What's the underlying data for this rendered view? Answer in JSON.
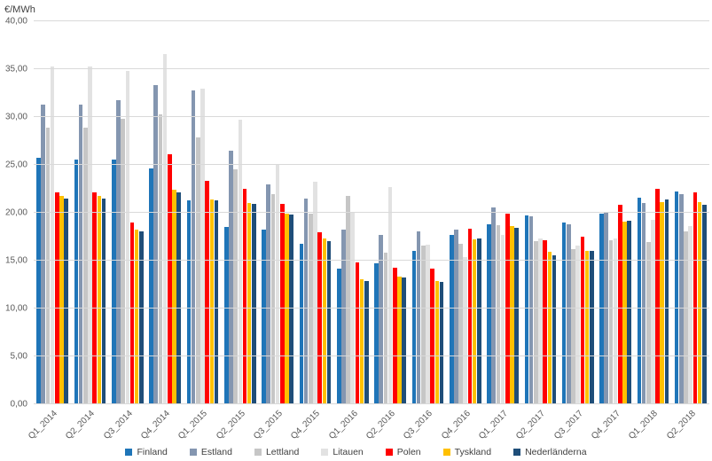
{
  "chart_data": {
    "type": "bar",
    "title": "",
    "ylabel": "€/MWh",
    "xlabel": "",
    "ylim": [
      0,
      40
    ],
    "ytick_step": 5,
    "ytick_labels": [
      "0,00",
      "5,00",
      "10,00",
      "15,00",
      "20,00",
      "25,00",
      "30,00",
      "35,00",
      "40,00"
    ],
    "grid": "horizontal",
    "legend_position": "bottom",
    "categories": [
      "Q1_2014",
      "Q2_2014",
      "Q3_2014",
      "Q4_2014",
      "Q1_2015",
      "Q2_2015",
      "Q3_2015",
      "Q4_2015",
      "Q1_2016",
      "Q2_2016",
      "Q3_2016",
      "Q4_2016",
      "Q1_2017",
      "Q2_2017",
      "Q3_2017",
      "Q4_2017",
      "Q1_2018",
      "Q2_2018"
    ],
    "series": [
      {
        "name": "Finland",
        "color": "#1F75B8",
        "values": [
          25.7,
          25.6,
          25.6,
          24.6,
          21.3,
          18.5,
          18.2,
          16.8,
          14.2,
          14.7,
          16.0,
          17.7,
          18.8,
          19.7,
          19.0,
          19.9,
          21.6,
          22.2
        ]
      },
      {
        "name": "Estland",
        "color": "#8496B0",
        "values": [
          31.3,
          31.3,
          31.8,
          33.3,
          32.8,
          26.5,
          23.0,
          21.5,
          18.2,
          17.7,
          18.1,
          18.2,
          20.6,
          19.6,
          18.8,
          20.1,
          21.0,
          21.9
        ]
      },
      {
        "name": "Lettland",
        "color": "#C6C6C6",
        "values": [
          28.9,
          28.9,
          29.8,
          30.3,
          27.9,
          24.5,
          21.9,
          19.9,
          21.8,
          15.8,
          16.6,
          16.8,
          18.7,
          17.0,
          16.2,
          17.1,
          16.9,
          18.1
        ]
      },
      {
        "name": "Litauen",
        "color": "#E2E2E2",
        "values": [
          35.3,
          35.3,
          34.8,
          36.6,
          33.0,
          29.7,
          25.1,
          23.2,
          20.1,
          22.7,
          16.7,
          15.4,
          17.7,
          17.3,
          16.6,
          17.3,
          19.3,
          18.6
        ]
      },
      {
        "name": "Polen",
        "color": "#FF0000",
        "values": [
          22.1,
          22.1,
          19.0,
          26.1,
          23.3,
          22.5,
          20.9,
          18.0,
          14.8,
          14.3,
          14.2,
          18.3,
          19.9,
          17.1,
          17.5,
          20.8,
          22.5,
          22.1
        ]
      },
      {
        "name": "Tyskland",
        "color": "#FFC000",
        "values": [
          21.8,
          21.8,
          18.2,
          22.4,
          21.4,
          21.0,
          19.9,
          17.3,
          13.1,
          13.3,
          12.9,
          17.2,
          18.6,
          15.9,
          16.0,
          19.1,
          21.1,
          21.1
        ]
      },
      {
        "name": "Nederländerna",
        "color": "#1F4E79",
        "values": [
          21.5,
          21.5,
          18.1,
          22.1,
          21.3,
          20.9,
          19.8,
          17.0,
          12.9,
          13.2,
          12.8,
          17.3,
          18.4,
          15.6,
          16.0,
          19.2,
          21.4,
          20.8
        ]
      }
    ]
  },
  "colors": {
    "background": "#FFFFFF",
    "gridline": "#D9D9D9",
    "axis_text": "#595959",
    "title_text": "#404040"
  }
}
